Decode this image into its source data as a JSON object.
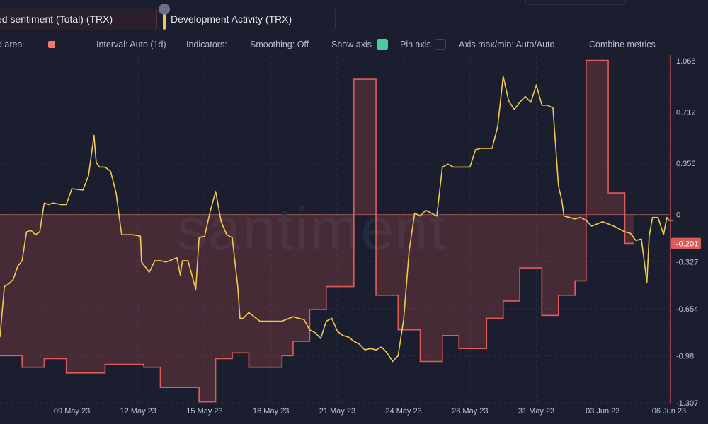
{
  "header": {
    "metric_sentiment": "ed sentiment (Total) (TRX)",
    "metric_dev": "Development Activity (TRX)"
  },
  "settings": {
    "shaded_area_label": "d area",
    "interval": "Interval: Auto (1d)",
    "indicators": "Indicators:",
    "smoothing": "Smoothing: Off",
    "show_axis": "Show axis",
    "pin_axis": "Pin axis",
    "axis_maxmin": "Axis max/min: Auto/Auto",
    "combine_metrics": "Combine metrics"
  },
  "colors": {
    "sentiment": "#e05c5c",
    "dev_activity": "#f2c94c",
    "shaded_swatch": "#f07a72",
    "show_axis_toggle": "#4cc9a0"
  },
  "watermark": "santiment",
  "chart_data": {
    "type": "line",
    "y_axis": {
      "ticks": [
        "1.068",
        "0.712",
        "0.356",
        "0",
        "-0.327",
        "-0.654",
        "-0.98",
        "-1.307"
      ],
      "min": -1.307,
      "max": 1.068,
      "current_value_label": "-0.201",
      "current_value": -0.201
    },
    "x_axis": {
      "ticks": [
        "09 May 23",
        "12 May 23",
        "15 May 23",
        "18 May 23",
        "21 May 23",
        "24 May 23",
        "28 May 23",
        "31 May 23",
        "03 Jun 23",
        "06 Jun 23"
      ],
      "range_days": [
        5.75,
        34.4
      ],
      "tick_days": [
        9,
        12,
        15,
        18,
        21,
        24,
        27,
        30,
        33,
        36
      ]
    },
    "series": [
      {
        "name": "ed sentiment (Total) (TRX)",
        "style": "step-area",
        "points": [
          [
            5.75,
            -0.98
          ],
          [
            6.75,
            -1.06
          ],
          [
            7.75,
            -1.0
          ],
          [
            8.75,
            -1.1
          ],
          [
            9.75,
            -1.1
          ],
          [
            10.5,
            -1.04
          ],
          [
            11.5,
            -1.04
          ],
          [
            12.25,
            -1.06
          ],
          [
            13.0,
            -1.2
          ],
          [
            14.0,
            -1.2
          ],
          [
            14.75,
            -1.3
          ],
          [
            15.5,
            -1.0
          ],
          [
            16.25,
            -0.96
          ],
          [
            17.0,
            -1.06
          ],
          [
            18.0,
            -1.06
          ],
          [
            18.5,
            -0.98
          ],
          [
            19.0,
            -0.88
          ],
          [
            19.75,
            -0.66
          ],
          [
            20.5,
            -0.5
          ],
          [
            21.25,
            -0.5
          ],
          [
            21.75,
            0.94
          ],
          [
            22.75,
            -0.56
          ],
          [
            23.75,
            -0.8
          ],
          [
            24.75,
            -1.02
          ],
          [
            25.75,
            -0.84
          ],
          [
            26.5,
            -0.93
          ],
          [
            27.75,
            -0.72
          ],
          [
            28.5,
            -0.6
          ],
          [
            29.25,
            -0.37
          ],
          [
            30.25,
            -0.7
          ],
          [
            31.0,
            -0.56
          ],
          [
            31.75,
            -0.46
          ],
          [
            32.25,
            1.07
          ],
          [
            33.25,
            0.15
          ],
          [
            34.0,
            -0.2
          ],
          [
            34.4,
            -0.201
          ]
        ]
      },
      {
        "name": "Development Activity (TRX)",
        "style": "line",
        "points": [
          [
            5.75,
            -0.85
          ],
          [
            5.95,
            -0.5
          ],
          [
            6.15,
            -0.48
          ],
          [
            6.35,
            -0.45
          ],
          [
            6.55,
            -0.36
          ],
          [
            6.75,
            -0.32
          ],
          [
            6.95,
            -0.12
          ],
          [
            7.15,
            -0.11
          ],
          [
            7.35,
            -0.14
          ],
          [
            7.55,
            -0.12
          ],
          [
            7.75,
            0.08
          ],
          [
            7.95,
            0.07
          ],
          [
            8.15,
            0.08
          ],
          [
            8.5,
            0.07
          ],
          [
            8.75,
            0.07
          ],
          [
            9.0,
            0.18
          ],
          [
            9.5,
            0.17
          ],
          [
            9.75,
            0.27
          ],
          [
            10.0,
            0.55
          ],
          [
            10.1,
            0.36
          ],
          [
            10.25,
            0.33
          ],
          [
            10.5,
            0.33
          ],
          [
            10.75,
            0.3
          ],
          [
            11.0,
            0.15
          ],
          [
            11.25,
            -0.14
          ],
          [
            11.75,
            -0.14
          ],
          [
            12.1,
            -0.15
          ],
          [
            12.15,
            -0.33
          ],
          [
            12.5,
            -0.4
          ],
          [
            12.75,
            -0.32
          ],
          [
            13.0,
            -0.32
          ],
          [
            13.25,
            -0.33
          ],
          [
            13.75,
            -0.3
          ],
          [
            13.9,
            -0.42
          ],
          [
            14.0,
            -0.32
          ],
          [
            14.25,
            -0.32
          ],
          [
            14.6,
            -0.52
          ],
          [
            14.75,
            -0.16
          ],
          [
            15.0,
            -0.15
          ],
          [
            15.25,
            0.02
          ],
          [
            15.5,
            0.16
          ],
          [
            15.75,
            -0.05
          ],
          [
            16.0,
            -0.14
          ],
          [
            16.25,
            -0.16
          ],
          [
            16.5,
            -0.5
          ],
          [
            16.6,
            -0.72
          ],
          [
            16.75,
            -0.72
          ],
          [
            17.0,
            -0.68
          ],
          [
            17.5,
            -0.74
          ],
          [
            18.0,
            -0.74
          ],
          [
            18.5,
            -0.74
          ],
          [
            19.0,
            -0.71
          ],
          [
            19.5,
            -0.73
          ],
          [
            19.75,
            -0.8
          ],
          [
            20.0,
            -0.82
          ],
          [
            20.25,
            -0.86
          ],
          [
            20.5,
            -0.74
          ],
          [
            20.75,
            -0.72
          ],
          [
            21.0,
            -0.81
          ],
          [
            21.25,
            -0.84
          ],
          [
            21.5,
            -0.85
          ],
          [
            21.75,
            -0.88
          ],
          [
            22.0,
            -0.9
          ],
          [
            22.25,
            -0.94
          ],
          [
            22.5,
            -0.93
          ],
          [
            22.75,
            -0.94
          ],
          [
            23.0,
            -0.92
          ],
          [
            23.25,
            -0.96
          ],
          [
            23.5,
            -1.02
          ],
          [
            23.75,
            -0.98
          ],
          [
            24.0,
            -0.73
          ],
          [
            24.25,
            -0.25
          ],
          [
            24.5,
            0.01
          ],
          [
            24.75,
            -0.01
          ],
          [
            25.0,
            0.03
          ],
          [
            25.5,
            -0.01
          ],
          [
            25.75,
            0.33
          ],
          [
            26.0,
            0.35
          ],
          [
            26.25,
            0.33
          ],
          [
            26.5,
            0.33
          ],
          [
            27.0,
            0.33
          ],
          [
            27.25,
            0.45
          ],
          [
            27.5,
            0.46
          ],
          [
            27.75,
            0.46
          ],
          [
            28.0,
            0.46
          ],
          [
            28.25,
            0.61
          ],
          [
            28.5,
            0.96
          ],
          [
            28.75,
            0.79
          ],
          [
            29.0,
            0.73
          ],
          [
            29.25,
            0.78
          ],
          [
            29.5,
            0.82
          ],
          [
            29.75,
            0.78
          ],
          [
            30.0,
            0.9
          ],
          [
            30.25,
            0.76
          ],
          [
            30.5,
            0.76
          ],
          [
            30.75,
            0.74
          ],
          [
            31.0,
            0.2
          ],
          [
            31.15,
            0.1
          ],
          [
            31.25,
            -0.01
          ],
          [
            31.5,
            -0.02
          ],
          [
            31.75,
            -0.03
          ],
          [
            32.0,
            -0.02
          ],
          [
            32.25,
            -0.04
          ],
          [
            32.5,
            -0.08
          ],
          [
            33.0,
            -0.05
          ],
          [
            33.5,
            -0.08
          ],
          [
            34.0,
            -0.12
          ],
          [
            34.25,
            -0.13
          ],
          [
            34.5,
            -0.18
          ],
          [
            34.75,
            -0.17
          ],
          [
            35.0,
            -0.47
          ],
          [
            35.1,
            -0.15
          ],
          [
            35.25,
            -0.02
          ],
          [
            35.5,
            -0.02
          ],
          [
            35.75,
            -0.14
          ],
          [
            35.9,
            -0.02
          ],
          [
            36.0,
            -0.04
          ],
          [
            36.2,
            -0.04
          ]
        ]
      }
    ],
    "grid": true,
    "zero_line": true
  }
}
